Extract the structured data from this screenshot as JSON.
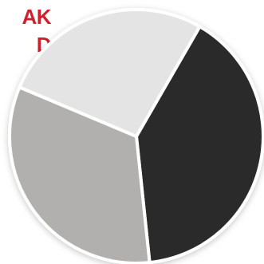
{
  "title": "AK\nD",
  "colors": {
    "title": "#d0202b",
    "separator": "#ffffff"
  },
  "chart_data": {
    "type": "pie",
    "title": "",
    "start_angle_deg": -60,
    "slices": [
      {
        "label": "",
        "value": 40,
        "color": "#2c2c2c"
      },
      {
        "label": "",
        "value": 33,
        "color": "#b1b0ae"
      },
      {
        "label": "",
        "value": 27,
        "color": "#e4e4e4"
      }
    ]
  }
}
